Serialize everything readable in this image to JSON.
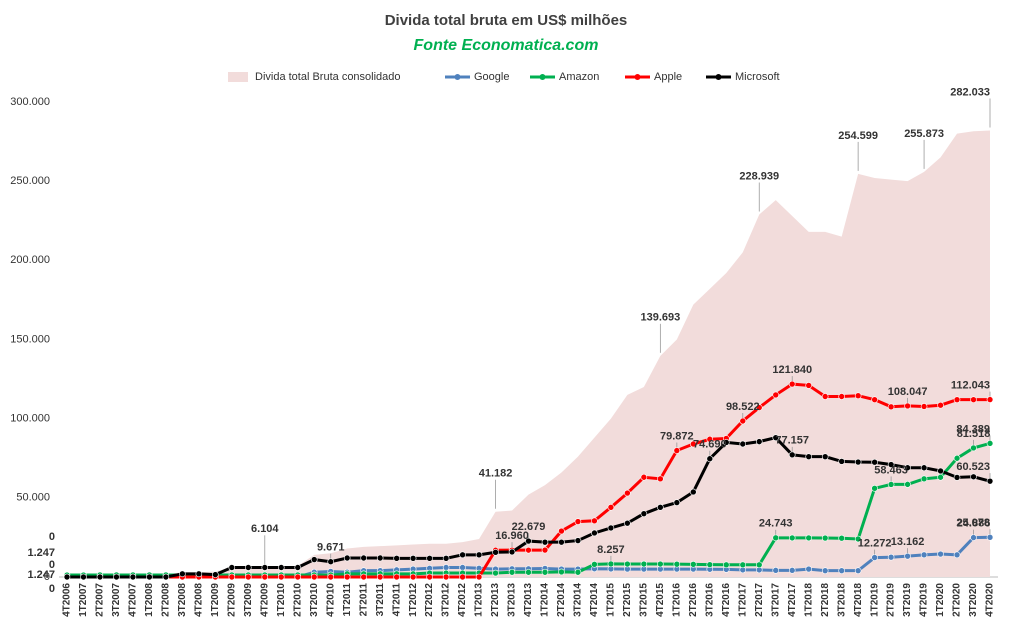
{
  "chart_data": {
    "type": "line",
    "title": "Divida total bruta em US$ milhões",
    "subtitle": "Fonte Economatica.com",
    "legend": "top",
    "grid": false,
    "categories": [
      "4T2006",
      "1T2007",
      "2T2007",
      "3T2007",
      "4T2007",
      "1T2008",
      "2T2008",
      "3T2008",
      "4T2008",
      "1T2009",
      "2T2009",
      "3T2009",
      "4T2009",
      "1T2010",
      "2T2010",
      "3T2010",
      "4T2010",
      "1T2011",
      "2T2011",
      "3T2011",
      "4T2011",
      "1T2012",
      "2T2012",
      "3T2012",
      "4T2012",
      "1T2013",
      "2T2013",
      "3T2013",
      "4T2013",
      "1T2014",
      "2T2014",
      "3T2014",
      "4T2014",
      "1T2015",
      "2T2015",
      "3T2015",
      "4T2015",
      "1T2016",
      "2T2016",
      "3T2016",
      "4T2016",
      "1T2017",
      "2T2017",
      "3T2017",
      "4T2017",
      "1T2018",
      "2T2018",
      "3T2018",
      "4T2018",
      "1T2019",
      "2T2019",
      "3T2019",
      "4T2019",
      "1T2020",
      "2T2020",
      "3T2020",
      "4T2020"
    ],
    "ylim": [
      0,
      300000
    ],
    "yticks": [
      0,
      {
        "value": 50000,
        "label": "50.000"
      },
      {
        "value": 100000,
        "label": "100.000"
      },
      {
        "value": 150000,
        "label": "150.000"
      },
      {
        "value": 200000,
        "label": "200.000"
      },
      {
        "value": 250000,
        "label": "250.000"
      },
      {
        "value": 300000,
        "label": "300.000"
      }
    ],
    "series": [
      {
        "name": "Divida total Bruta consolidado",
        "type": "area",
        "color": "#f2dcdb",
        "label_color": "#d08a88",
        "values": [
          1247,
          1500,
          1500,
          1600,
          1600,
          1700,
          1700,
          3000,
          3000,
          3500,
          6000,
          6100,
          6104,
          6500,
          7000,
          14000,
          15000,
          18000,
          19000,
          19500,
          20000,
          20500,
          21000,
          21000,
          22000,
          24000,
          41182,
          42000,
          52000,
          58000,
          66000,
          76000,
          88000,
          100000,
          115000,
          120000,
          139693,
          150000,
          172000,
          182000,
          192000,
          205000,
          228939,
          238000,
          228000,
          218000,
          218000,
          215000,
          254599,
          252000,
          251000,
          250000,
          255873,
          265000,
          280000,
          281500,
          282033
        ],
        "value_labels": [
          "1.247",
          null,
          null,
          null,
          null,
          null,
          null,
          null,
          null,
          null,
          null,
          null,
          "6.104",
          null,
          null,
          null,
          null,
          null,
          null,
          null,
          null,
          null,
          null,
          null,
          null,
          null,
          "41.182",
          null,
          null,
          null,
          null,
          null,
          null,
          null,
          null,
          null,
          "139.693",
          null,
          null,
          null,
          null,
          null,
          "228.939",
          null,
          null,
          null,
          null,
          null,
          "254.599",
          null,
          null,
          null,
          "255.873",
          null,
          null,
          null,
          "282.033"
        ]
      },
      {
        "name": "Google",
        "color": "#4f81bd",
        "label_color": "#1f6fc0",
        "values": [
          0,
          0,
          0,
          0,
          0,
          0,
          0,
          0,
          0,
          0,
          0,
          0,
          0,
          0,
          0,
          3000,
          3500,
          3000,
          4000,
          4000,
          4500,
          5000,
          5500,
          6000,
          6000,
          5500,
          5000,
          5200,
          5200,
          5400,
          5000,
          5000,
          5200,
          5100,
          5000,
          5000,
          5000,
          5000,
          5000,
          4900,
          4800,
          4500,
          4500,
          4200,
          4200,
          5000,
          4000,
          4000,
          4000,
          12272,
          12500,
          13162,
          14000,
          14500,
          14000,
          24886,
          25078
        ],
        "value_labels": [
          "0",
          null,
          null,
          null,
          null,
          null,
          null,
          null,
          null,
          null,
          null,
          null,
          null,
          null,
          null,
          null,
          null,
          null,
          null,
          null,
          null,
          null,
          null,
          null,
          null,
          null,
          null,
          null,
          null,
          null,
          null,
          null,
          null,
          null,
          null,
          null,
          null,
          null,
          null,
          null,
          null,
          null,
          null,
          null,
          null,
          null,
          null,
          null,
          null,
          "12.272",
          null,
          "13.162",
          null,
          null,
          null,
          "24.886",
          "25.078"
        ]
      },
      {
        "name": "Amazon",
        "color": "#00b050",
        "label_color": "#00a040",
        "values": [
          1247,
          1250,
          1300,
          1300,
          1300,
          1300,
          1300,
          1300,
          1300,
          1300,
          1300,
          1300,
          1300,
          1300,
          1300,
          1300,
          1300,
          2000,
          2000,
          2000,
          2000,
          2000,
          2500,
          2500,
          2500,
          2500,
          2500,
          3000,
          3000,
          3000,
          3200,
          3000,
          8000,
          8257,
          8200,
          8200,
          8200,
          8100,
          8000,
          7800,
          7700,
          7700,
          7700,
          24743,
          24700,
          24700,
          24600,
          24500,
          24000,
          56000,
          58463,
          58500,
          62000,
          63000,
          75000,
          81518,
          84389
        ],
        "value_labels": [
          "1.247",
          null,
          null,
          null,
          null,
          null,
          null,
          null,
          null,
          null,
          null,
          null,
          null,
          null,
          null,
          null,
          null,
          null,
          null,
          null,
          null,
          null,
          null,
          null,
          null,
          null,
          null,
          null,
          null,
          null,
          null,
          null,
          null,
          "8.257",
          null,
          null,
          null,
          null,
          null,
          null,
          null,
          null,
          null,
          "24.743",
          null,
          null,
          null,
          null,
          null,
          null,
          "58.463",
          null,
          null,
          null,
          null,
          "81.518",
          "84.389"
        ]
      },
      {
        "name": "Apple",
        "color": "#ff0000",
        "label_color": "#ff0000",
        "values": [
          0,
          0,
          0,
          0,
          0,
          0,
          0,
          0,
          0,
          0,
          0,
          0,
          0,
          0,
          0,
          0,
          0,
          0,
          0,
          0,
          0,
          0,
          0,
          0,
          0,
          0,
          16900,
          16960,
          16960,
          17000,
          29000,
          35000,
          35500,
          44000,
          53000,
          63000,
          62000,
          79872,
          84000,
          87000,
          87500,
          98522,
          107000,
          115000,
          121840,
          121000,
          114000,
          114000,
          114500,
          112000,
          107500,
          108047,
          107700,
          108500,
          112000,
          112000,
          112043
        ],
        "value_labels": [
          "0",
          null,
          null,
          null,
          null,
          null,
          null,
          null,
          null,
          null,
          null,
          null,
          null,
          null,
          null,
          null,
          null,
          null,
          null,
          null,
          null,
          null,
          null,
          null,
          null,
          null,
          null,
          "16.960",
          null,
          null,
          null,
          null,
          null,
          null,
          null,
          null,
          null,
          "79.872",
          null,
          null,
          null,
          "98.522",
          null,
          null,
          "121.840",
          null,
          null,
          null,
          null,
          null,
          null,
          "108.047",
          null,
          null,
          null,
          null,
          "112.043"
        ]
      },
      {
        "name": "Microsoft",
        "color": "#000000",
        "label_color": "#000000",
        "values": [
          0,
          0,
          0,
          0,
          0,
          0,
          0,
          2000,
          2000,
          1500,
          6000,
          6000,
          6000,
          6000,
          6000,
          11000,
          9671,
          12000,
          12000,
          12000,
          11800,
          11800,
          11800,
          11800,
          14000,
          14000,
          15600,
          15800,
          22679,
          22000,
          22000,
          23000,
          27800,
          31000,
          34000,
          40000,
          44000,
          47000,
          53700,
          74690,
          85000,
          84000,
          85500,
          88000,
          77157,
          76000,
          76000,
          73000,
          72600,
          72500,
          71000,
          69000,
          69000,
          67000,
          62900,
          63300,
          60523
        ],
        "value_labels": [
          "0",
          null,
          null,
          null,
          null,
          null,
          null,
          null,
          null,
          null,
          null,
          null,
          null,
          null,
          null,
          null,
          "9.671",
          null,
          null,
          null,
          null,
          null,
          null,
          null,
          null,
          null,
          null,
          null,
          "22.679",
          null,
          null,
          null,
          null,
          null,
          null,
          null,
          null,
          null,
          null,
          "74.690",
          null,
          null,
          null,
          null,
          "77.157",
          null,
          null,
          null,
          null,
          null,
          null,
          null,
          null,
          null,
          null,
          null,
          "60.523"
        ]
      }
    ]
  }
}
